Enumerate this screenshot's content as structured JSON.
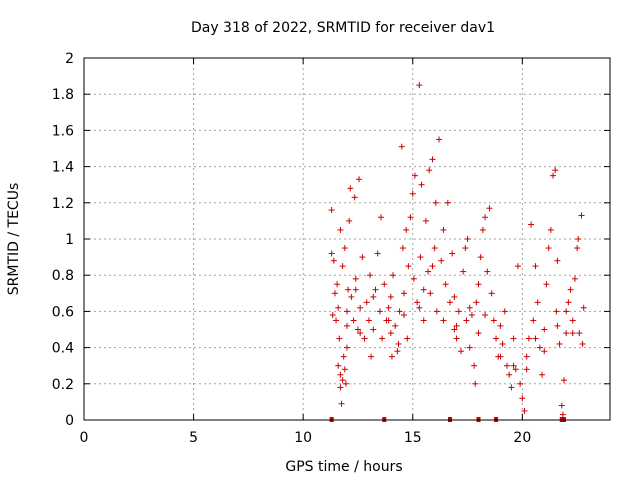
{
  "chart_data": {
    "type": "scatter",
    "title": "Day 318 of 2022, SRMTID for receiver dav1",
    "xlabel": "GPS time / hours",
    "ylabel": "SRMTID / TECUs",
    "xlim": [
      0,
      24
    ],
    "ylim": [
      0,
      2
    ],
    "xticks": [
      0,
      5,
      10,
      15,
      20
    ],
    "yticks": [
      0,
      0.2,
      0.4,
      0.6,
      0.8,
      1,
      1.2,
      1.4,
      1.6,
      1.8,
      2
    ],
    "grid": true,
    "marker": "+",
    "color": "#cc0000",
    "series": [
      {
        "name": "dav1",
        "points": [
          [
            11.3,
            0.92
          ],
          [
            11.3,
            1.16
          ],
          [
            11.35,
            0.58
          ],
          [
            11.4,
            0.88
          ],
          [
            11.45,
            0.7
          ],
          [
            11.5,
            0.55
          ],
          [
            11.55,
            0.75
          ],
          [
            11.6,
            0.62
          ],
          [
            11.6,
            0.3
          ],
          [
            11.65,
            0.45
          ],
          [
            11.7,
            0.25
          ],
          [
            11.7,
            0.18
          ],
          [
            11.75,
            0.09
          ],
          [
            11.8,
            0.22
          ],
          [
            11.85,
            0.35
          ],
          [
            11.9,
            0.28
          ],
          [
            11.95,
            0.2
          ],
          [
            12.0,
            0.4
          ],
          [
            11.7,
            1.05
          ],
          [
            11.8,
            0.85
          ],
          [
            11.9,
            0.95
          ],
          [
            12.0,
            0.6
          ],
          [
            12.05,
            0.72
          ],
          [
            12.1,
            1.1
          ],
          [
            12.15,
            1.28
          ],
          [
            12.2,
            0.68
          ],
          [
            12.3,
            0.55
          ],
          [
            12.35,
            1.23
          ],
          [
            12.4,
            0.78
          ],
          [
            12.5,
            0.5
          ],
          [
            12.55,
            1.33
          ],
          [
            12.6,
            0.62
          ],
          [
            12.7,
            0.9
          ],
          [
            12.8,
            0.45
          ],
          [
            12.9,
            0.65
          ],
          [
            13.0,
            0.55
          ],
          [
            13.05,
            0.8
          ],
          [
            13.1,
            0.35
          ],
          [
            13.2,
            0.68
          ],
          [
            13.3,
            0.72
          ],
          [
            13.4,
            0.92
          ],
          [
            13.5,
            0.6
          ],
          [
            13.55,
            1.12
          ],
          [
            13.6,
            0.45
          ],
          [
            13.7,
            0.75
          ],
          [
            13.8,
            0.55
          ],
          [
            13.9,
            0.62
          ],
          [
            14.0,
            0.48
          ],
          [
            14.05,
            0.35
          ],
          [
            14.1,
            0.8
          ],
          [
            14.2,
            0.52
          ],
          [
            14.3,
            0.38
          ],
          [
            14.35,
            0.42
          ],
          [
            14.4,
            0.6
          ],
          [
            14.5,
            1.51
          ],
          [
            14.55,
            0.95
          ],
          [
            14.6,
            0.7
          ],
          [
            14.7,
            1.05
          ],
          [
            14.75,
            0.45
          ],
          [
            14.8,
            0.85
          ],
          [
            14.9,
            1.12
          ],
          [
            15.0,
            1.25
          ],
          [
            15.05,
            0.78
          ],
          [
            15.1,
            1.35
          ],
          [
            15.2,
            0.65
          ],
          [
            15.3,
            1.85
          ],
          [
            15.35,
            0.9
          ],
          [
            15.4,
            1.3
          ],
          [
            15.5,
            0.55
          ],
          [
            15.6,
            1.1
          ],
          [
            15.7,
            0.82
          ],
          [
            15.75,
            1.38
          ],
          [
            15.8,
            0.7
          ],
          [
            15.9,
            1.44
          ],
          [
            16.0,
            0.95
          ],
          [
            16.05,
            1.2
          ],
          [
            16.1,
            0.6
          ],
          [
            16.2,
            1.55
          ],
          [
            16.3,
            0.88
          ],
          [
            16.4,
            1.05
          ],
          [
            16.5,
            0.75
          ],
          [
            16.6,
            1.2
          ],
          [
            16.7,
            0.65
          ],
          [
            16.8,
            0.92
          ],
          [
            16.9,
            0.5
          ],
          [
            17.0,
            0.45
          ],
          [
            17.1,
            0.6
          ],
          [
            17.2,
            0.38
          ],
          [
            17.3,
            0.82
          ],
          [
            17.4,
            0.95
          ],
          [
            17.45,
            0.55
          ],
          [
            17.5,
            1.0
          ],
          [
            17.6,
            0.4
          ],
          [
            17.7,
            0.58
          ],
          [
            17.8,
            0.3
          ],
          [
            17.85,
            0.2
          ],
          [
            17.9,
            0.65
          ],
          [
            18.0,
            0.75
          ],
          [
            18.1,
            0.9
          ],
          [
            18.2,
            1.05
          ],
          [
            18.3,
            1.12
          ],
          [
            18.4,
            0.82
          ],
          [
            18.5,
            1.17
          ],
          [
            18.6,
            0.7
          ],
          [
            18.7,
            0.55
          ],
          [
            18.8,
            0.45
          ],
          [
            18.9,
            0.35
          ],
          [
            19.0,
            0.52
          ],
          [
            19.1,
            0.42
          ],
          [
            19.2,
            0.6
          ],
          [
            19.3,
            0.3
          ],
          [
            19.4,
            0.25
          ],
          [
            19.5,
            0.18
          ],
          [
            19.6,
            0.45
          ],
          [
            19.7,
            0.28
          ],
          [
            19.8,
            0.85
          ],
          [
            19.9,
            0.2
          ],
          [
            20.0,
            0.12
          ],
          [
            20.1,
            0.05
          ],
          [
            20.2,
            0.35
          ],
          [
            20.3,
            0.45
          ],
          [
            20.4,
            1.08
          ],
          [
            20.5,
            0.55
          ],
          [
            20.6,
            0.85
          ],
          [
            20.7,
            0.65
          ],
          [
            20.8,
            0.4
          ],
          [
            20.9,
            0.25
          ],
          [
            21.0,
            0.5
          ],
          [
            21.1,
            0.75
          ],
          [
            21.2,
            0.95
          ],
          [
            21.3,
            1.05
          ],
          [
            21.4,
            1.35
          ],
          [
            21.5,
            1.38
          ],
          [
            21.55,
            0.6
          ],
          [
            21.6,
            0.88
          ],
          [
            21.7,
            0.42
          ],
          [
            21.8,
            0.08
          ],
          [
            21.85,
            0.03
          ],
          [
            21.9,
            0.22
          ],
          [
            22.0,
            0.48
          ],
          [
            22.1,
            0.65
          ],
          [
            22.2,
            0.72
          ],
          [
            22.3,
            0.55
          ],
          [
            22.4,
            0.78
          ],
          [
            22.5,
            0.95
          ],
          [
            22.55,
            1.0
          ],
          [
            22.6,
            0.48
          ],
          [
            22.7,
            1.13
          ],
          [
            22.75,
            0.42
          ],
          [
            22.8,
            0.62
          ],
          [
            12.0,
            0.52
          ],
          [
            12.6,
            0.48
          ],
          [
            13.2,
            0.5
          ],
          [
            13.9,
            0.55
          ],
          [
            14.6,
            0.58
          ],
          [
            15.3,
            0.62
          ],
          [
            15.9,
            0.85
          ],
          [
            16.4,
            0.55
          ],
          [
            17.0,
            0.52
          ],
          [
            17.6,
            0.62
          ],
          [
            18.3,
            0.58
          ],
          [
            19.0,
            0.35
          ],
          [
            19.6,
            0.3
          ],
          [
            20.2,
            0.28
          ],
          [
            21.0,
            0.38
          ],
          [
            21.6,
            0.52
          ],
          [
            22.3,
            0.48
          ],
          [
            12.4,
            0.72
          ],
          [
            14.0,
            0.68
          ],
          [
            15.5,
            0.72
          ],
          [
            16.9,
            0.68
          ],
          [
            18.0,
            0.48
          ],
          [
            20.6,
            0.45
          ],
          [
            22.0,
            0.6
          ]
        ]
      }
    ],
    "gap_markers_x": [
      11.3,
      13.7,
      16.7,
      18.0,
      18.8,
      21.8,
      21.9
    ]
  }
}
